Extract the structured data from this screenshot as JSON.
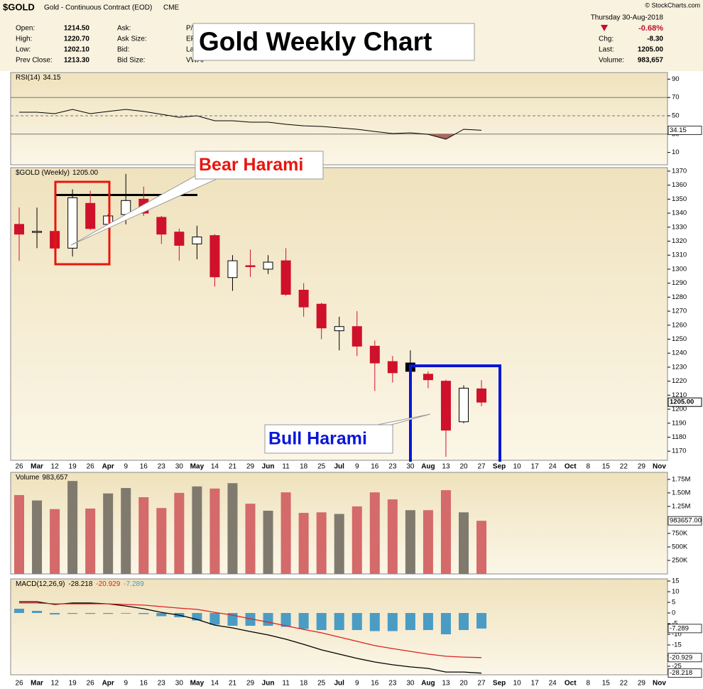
{
  "header": {
    "symbol": "$GOLD",
    "name": "Gold - Continuous Contract (EOD)",
    "exchange": "CME",
    "source": "© StockCharts.com",
    "date": "Thursday 30-Aug-2018",
    "change_pct": "-0.68%",
    "fields": [
      {
        "label": "Open:",
        "value": "1214.50"
      },
      {
        "label": "High:",
        "value": "1220.70"
      },
      {
        "label": "Low:",
        "value": "1202.10"
      },
      {
        "label": "Prev Close:",
        "value": "1213.30"
      }
    ],
    "fields2": [
      "Ask:",
      "Ask Size:",
      "Bid:",
      "Bid Size:"
    ],
    "fields3": [
      "P/E",
      "EP",
      "La",
      "VWAP"
    ],
    "fields_right": [
      {
        "label": "Chg:",
        "value": "-8.30"
      },
      {
        "label": "Last:",
        "value": "1205.00"
      },
      {
        "label": "Volume:",
        "value": "983,657"
      }
    ]
  },
  "chart_data": [
    {
      "type": "line",
      "label": "RSI(14)",
      "color": "#000000",
      "values": [
        53.9,
        53.9,
        52.3,
        57.0,
        52.3,
        54.7,
        57.0,
        54.7,
        51.6,
        48.4,
        50,
        44.6,
        44.6,
        43.0,
        43.0,
        40.7,
        39.1,
        38.4,
        36.8,
        35.3,
        32.9,
        30.6,
        31.4,
        29.8,
        24.4,
        35.3,
        34.15
      ],
      "ylim": [
        -3.5,
        97.3
      ],
      "yticks": [
        10,
        30,
        50,
        70,
        90
      ],
      "reference_lines": [
        70,
        30
      ],
      "dashed_line": 50,
      "fill_below": 30,
      "fill_color": "#a8695e"
    },
    {
      "type": "candlestick",
      "title": "Gold Weekly Chart",
      "label": "$GOLD (Weekly)",
      "last_label": "1205.00",
      "categories": [
        "26",
        "Mar",
        "12",
        "19",
        "26",
        "Apr",
        "9",
        "16",
        "23",
        "30",
        "May",
        "14",
        "21",
        "29",
        "Jun",
        "11",
        "18",
        "25",
        "Jul",
        "9",
        "16",
        "23",
        "30",
        "Aug",
        "13",
        "20",
        "27",
        "Sep",
        "10",
        "17",
        "24",
        "Oct",
        "8",
        "15",
        "22",
        "29",
        "Nov"
      ],
      "open": [
        1332,
        1327,
        1327,
        1315,
        1347,
        1332,
        1339,
        1350,
        1337,
        1326.5,
        1318,
        1324,
        1294,
        1302.5,
        1300,
        1306,
        1285,
        1275,
        1256,
        1259,
        1245,
        1234,
        1233,
        1225,
        1220,
        1191,
        1214.5,
        null,
        null,
        null,
        null,
        null,
        null,
        null,
        null,
        null,
        null
      ],
      "high": [
        1344,
        1344,
        1344,
        1357,
        1356,
        1339,
        1368,
        1359,
        1338,
        1329,
        1331,
        1325,
        1310,
        1314,
        1310,
        1315,
        1290,
        1276,
        1266,
        1270,
        1249,
        1238,
        1242,
        1227,
        1221,
        1217,
        1220.7,
        null,
        null,
        null,
        null,
        null,
        null,
        null,
        null,
        null,
        null
      ],
      "low": [
        1306,
        1315,
        1314,
        1309,
        1328,
        1331,
        1332,
        1338,
        1318,
        1306,
        1307,
        1287.5,
        1284.5,
        1294.5,
        1296.5,
        1281,
        1266,
        1250,
        1242,
        1238,
        1213,
        1219,
        1221,
        1215,
        1166,
        1190,
        1202.1,
        null,
        null,
        null,
        null,
        null,
        null,
        null,
        null,
        null,
        null
      ],
      "close": [
        1325,
        1327,
        1315,
        1351,
        1329,
        1338,
        1349,
        1340,
        1325,
        1317,
        1323,
        1294.5,
        1306,
        1302,
        1305,
        1282,
        1273,
        1258,
        1259,
        1245,
        1233,
        1226,
        1227,
        1221,
        1185,
        1215,
        1205,
        null,
        null,
        null,
        null,
        null,
        null,
        null,
        null,
        null,
        null
      ],
      "up_color": "#000000",
      "down_color": "#d0112b",
      "ylim": [
        1163.5,
        1372.5
      ],
      "yticks": [
        1170,
        1180,
        1190,
        1200,
        1210,
        1220,
        1230,
        1240,
        1250,
        1260,
        1270,
        1280,
        1290,
        1300,
        1310,
        1320,
        1330,
        1340,
        1350,
        1360,
        1370
      ],
      "resistance": 1353,
      "annotations": [
        {
          "text": "Bear Harami",
          "color": "#e8150e"
        },
        {
          "text": "Bull Harami",
          "color": "#0a16d8"
        }
      ]
    },
    {
      "type": "bar",
      "label": "Volume",
      "last_labels": [
        "983,657",
        "983657.00"
      ],
      "values": [
        1460000,
        1360000,
        1200000,
        1720000,
        1210000,
        1490000,
        1590000,
        1420000,
        1220000,
        1500000,
        1620000,
        1580000,
        1680000,
        1300000,
        1170000,
        1510000,
        1130000,
        1140000,
        1110000,
        1250000,
        1510000,
        1380000,
        1180000,
        1180000,
        1550000,
        1140000,
        983657
      ],
      "up_color": "#807a6e",
      "down_color": "#d46a6a",
      "ylim": [
        0,
        1880000
      ],
      "yticks": [
        {
          "value": 250000,
          "label": "250K"
        },
        {
          "value": 500000,
          "label": "500K"
        },
        {
          "value": 750000,
          "label": "750K"
        },
        {
          "value": 1250000,
          "label": "1.25M"
        },
        {
          "value": 1500000,
          "label": "1.50M"
        },
        {
          "value": 1750000,
          "label": "1.75M"
        }
      ]
    },
    {
      "type": "line",
      "label": "MACD(12,26,9)",
      "categories": [
        "26",
        "Mar",
        "12",
        "19",
        "26",
        "Apr",
        "9",
        "16",
        "23",
        "30",
        "May",
        "14",
        "21",
        "29",
        "Jun",
        "11",
        "18",
        "25",
        "Jul",
        "9",
        "16",
        "23",
        "30",
        "Aug",
        "13",
        "20",
        "27",
        "Sep",
        "10",
        "17",
        "24",
        "Oct",
        "8",
        "15",
        "22",
        "29",
        "Nov"
      ],
      "series": [
        {
          "color": "#000000",
          "values": [
            5.3,
            5.3,
            4,
            4.7,
            4.7,
            4.3,
            3.3,
            2,
            0.3,
            -1,
            -3,
            -5.7,
            -7,
            -8.7,
            -10.3,
            -12.3,
            -14.7,
            -17.3,
            -19.3,
            -21.3,
            -23,
            -24.3,
            -25.3,
            -26,
            -27.7,
            -27.7,
            -28.218,
            null,
            null,
            null,
            null,
            null,
            null,
            null,
            null,
            null,
            null
          ]
        },
        {
          "color": "#e02020",
          "values": [
            4.7,
            4.7,
            4.3,
            4.3,
            4.3,
            4.3,
            4,
            3.7,
            3,
            2.3,
            1.7,
            0.3,
            -1,
            -2.7,
            -4.3,
            -6,
            -7.7,
            -9.3,
            -11.3,
            -13.3,
            -15.3,
            -16.7,
            -18,
            -19.3,
            -20.3,
            -20.7,
            -20.929,
            null,
            null,
            null,
            null,
            null,
            null,
            null,
            null,
            null,
            null
          ]
        },
        {
          "type": "bar",
          "color": "#4a9cc4",
          "values": [
            2,
            1,
            -0.7,
            -0.4,
            -0.4,
            -0.4,
            -0.3,
            -0.5,
            -1.5,
            -2,
            -3.5,
            -5.5,
            -6,
            -6,
            -6,
            -6.5,
            -7.5,
            -8,
            -8,
            -8,
            -8.5,
            -8.5,
            -8,
            -8,
            -10,
            -8,
            -7.289,
            null,
            null,
            null,
            null,
            null,
            null,
            null,
            null,
            null,
            null
          ]
        }
      ],
      "ylim": [
        -29,
        16
      ],
      "yticks": [
        15,
        10,
        5,
        0,
        -5,
        -10,
        -15,
        -20,
        -25
      ]
    }
  ]
}
